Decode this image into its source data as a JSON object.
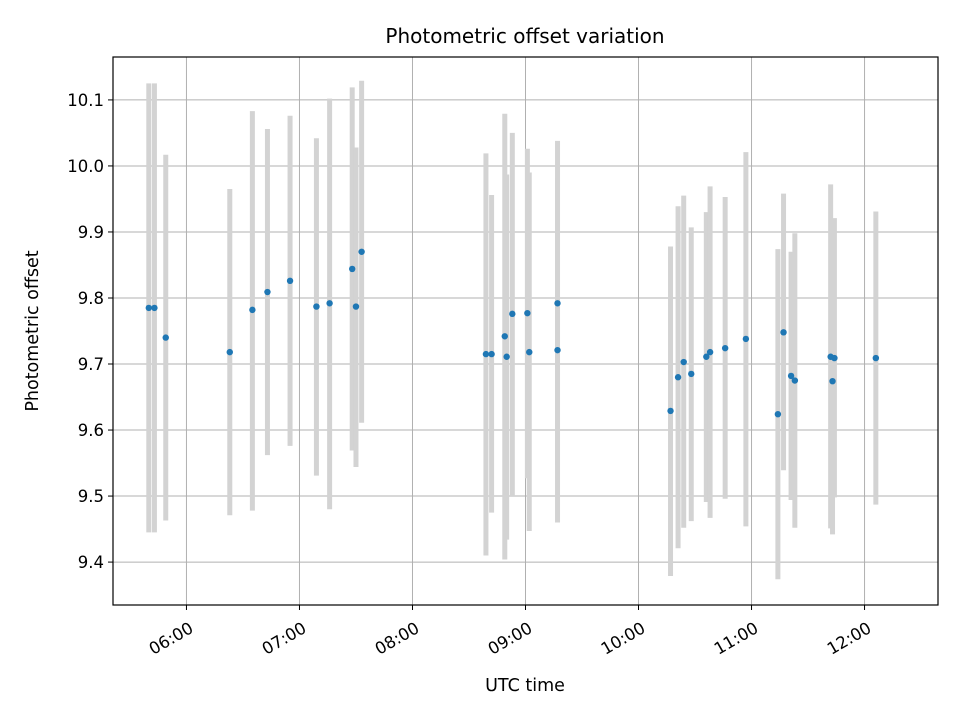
{
  "chart_data": {
    "type": "scatter",
    "title": "Photometric offset variation",
    "xlabel": "UTC time",
    "ylabel": "Photometric offset",
    "xlim": [
      "05:21",
      "12:39"
    ],
    "ylim": [
      9.335,
      10.165
    ],
    "x_ticks": [
      "06:00",
      "07:00",
      "08:00",
      "09:00",
      "10:00",
      "11:00",
      "12:00"
    ],
    "y_ticks": [
      "9.4",
      "9.5",
      "9.6",
      "9.7",
      "9.8",
      "9.9",
      "10.0",
      "10.1"
    ],
    "grid": true,
    "colors": {
      "points": "#1f77b4",
      "error_bars": "#d3d3d3",
      "grid": "#b0b0b0"
    },
    "points": [
      {
        "t": "05:40",
        "y": 9.785,
        "lo": 9.445,
        "hi": 10.125
      },
      {
        "t": "05:43",
        "y": 9.785,
        "lo": 9.445,
        "hi": 10.125
      },
      {
        "t": "05:49",
        "y": 9.74,
        "lo": 9.463,
        "hi": 10.017
      },
      {
        "t": "06:23",
        "y": 9.718,
        "lo": 9.471,
        "hi": 9.965
      },
      {
        "t": "06:35",
        "y": 9.782,
        "lo": 9.478,
        "hi": 10.083
      },
      {
        "t": "06:43",
        "y": 9.809,
        "lo": 9.562,
        "hi": 10.056
      },
      {
        "t": "06:55",
        "y": 9.826,
        "lo": 9.576,
        "hi": 10.076
      },
      {
        "t": "07:09",
        "y": 9.787,
        "lo": 9.531,
        "hi": 10.042
      },
      {
        "t": "07:16",
        "y": 9.792,
        "lo": 9.48,
        "hi": 10.102
      },
      {
        "t": "07:28",
        "y": 9.844,
        "lo": 9.569,
        "hi": 10.119
      },
      {
        "t": "07:30",
        "y": 9.787,
        "lo": 9.544,
        "hi": 10.028
      },
      {
        "t": "07:33",
        "y": 9.87,
        "lo": 9.611,
        "hi": 10.129
      },
      {
        "t": "08:39",
        "y": 9.715,
        "lo": 9.41,
        "hi": 10.019
      },
      {
        "t": "08:42",
        "y": 9.715,
        "lo": 9.475,
        "hi": 9.956
      },
      {
        "t": "08:49",
        "y": 9.742,
        "lo": 9.404,
        "hi": 10.079
      },
      {
        "t": "08:50",
        "y": 9.711,
        "lo": 9.434,
        "hi": 9.987
      },
      {
        "t": "08:53",
        "y": 9.776,
        "lo": 9.5,
        "hi": 10.05
      },
      {
        "t": "09:01",
        "y": 9.777,
        "lo": 9.527,
        "hi": 10.026
      },
      {
        "t": "09:02",
        "y": 9.718,
        "lo": 9.447,
        "hi": 9.99
      },
      {
        "t": "09:17",
        "y": 9.721,
        "lo": 9.46,
        "hi": 9.981
      },
      {
        "t": "09:17",
        "y": 9.792,
        "lo": 9.547,
        "hi": 10.038
      },
      {
        "t": "10:17",
        "y": 9.629,
        "lo": 9.379,
        "hi": 9.878
      },
      {
        "t": "10:21",
        "y": 9.68,
        "lo": 9.421,
        "hi": 9.939
      },
      {
        "t": "10:24",
        "y": 9.703,
        "lo": 9.452,
        "hi": 9.955
      },
      {
        "t": "10:28",
        "y": 9.685,
        "lo": 9.462,
        "hi": 9.907
      },
      {
        "t": "10:36",
        "y": 9.711,
        "lo": 9.491,
        "hi": 9.93
      },
      {
        "t": "10:38",
        "y": 9.718,
        "lo": 9.467,
        "hi": 9.969
      },
      {
        "t": "10:46",
        "y": 9.724,
        "lo": 9.496,
        "hi": 9.953
      },
      {
        "t": "10:57",
        "y": 9.738,
        "lo": 9.454,
        "hi": 10.021
      },
      {
        "t": "11:14",
        "y": 9.624,
        "lo": 9.374,
        "hi": 9.874
      },
      {
        "t": "11:17",
        "y": 9.748,
        "lo": 9.539,
        "hi": 9.958
      },
      {
        "t": "11:21",
        "y": 9.682,
        "lo": 9.494,
        "hi": 9.87
      },
      {
        "t": "11:23",
        "y": 9.675,
        "lo": 9.452,
        "hi": 9.898
      },
      {
        "t": "11:42",
        "y": 9.711,
        "lo": 9.451,
        "hi": 9.972
      },
      {
        "t": "11:43",
        "y": 9.674,
        "lo": 9.442,
        "hi": 9.905
      },
      {
        "t": "11:44",
        "y": 9.709,
        "lo": 9.498,
        "hi": 9.921
      },
      {
        "t": "12:06",
        "y": 9.709,
        "lo": 9.487,
        "hi": 9.931
      }
    ]
  }
}
